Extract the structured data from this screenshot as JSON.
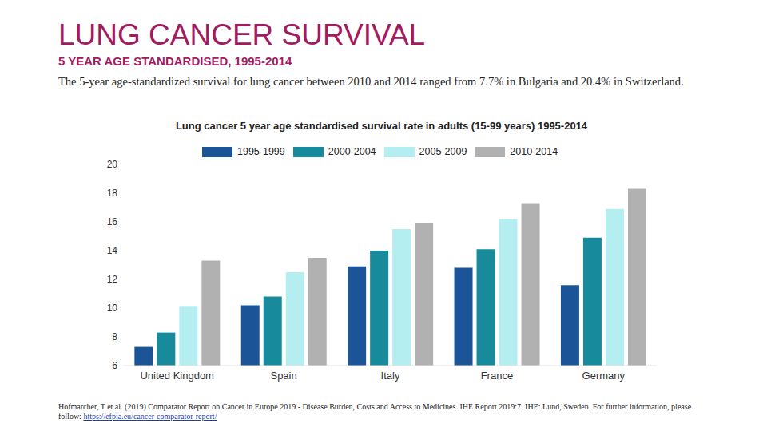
{
  "title": "LUNG CANCER SURVIVAL",
  "subtitle": "5 YEAR AGE STANDARDISED, 1995-2014",
  "description": "The 5-year age-standardized survival for lung cancer between 2010 and 2014 ranged from 7.7% in Bulgaria and 20.4% in Switzerland.",
  "chart_data": {
    "type": "bar",
    "title": "Lung cancer 5 year age standardised survival rate in adults (15-99 years) 1995-2014",
    "categories": [
      "United Kingdom",
      "Spain",
      "Italy",
      "France",
      "Germany"
    ],
    "series": [
      {
        "name": "1995-1999",
        "color": "#1b5597",
        "values": [
          7.3,
          10.2,
          12.9,
          12.8,
          11.6
        ]
      },
      {
        "name": "2000-2004",
        "color": "#178b9b",
        "values": [
          8.3,
          10.8,
          14.0,
          14.1,
          14.9
        ]
      },
      {
        "name": "2005-2009",
        "color": "#b4eef1",
        "values": [
          10.1,
          12.5,
          15.5,
          16.2,
          16.9
        ]
      },
      {
        "name": "2010-2014",
        "color": "#b1b1b1",
        "values": [
          13.3,
          13.5,
          15.9,
          17.3,
          18.3
        ]
      }
    ],
    "ylim": [
      6,
      20
    ],
    "yticks": [
      6,
      8,
      10,
      12,
      14,
      16,
      18,
      20
    ],
    "grid": false,
    "legend": "top"
  },
  "source": {
    "text": "Hofmarcher, T et al. (2019) Comparator Report on Cancer in Europe 2019 - Disease Burden, Costs and Access to Medicines. IHE Report 2019:7. IHE: Lund, Sweden. For further information, please follow:",
    "link": "https://efpia.eu/cancer-comparator-report/"
  }
}
